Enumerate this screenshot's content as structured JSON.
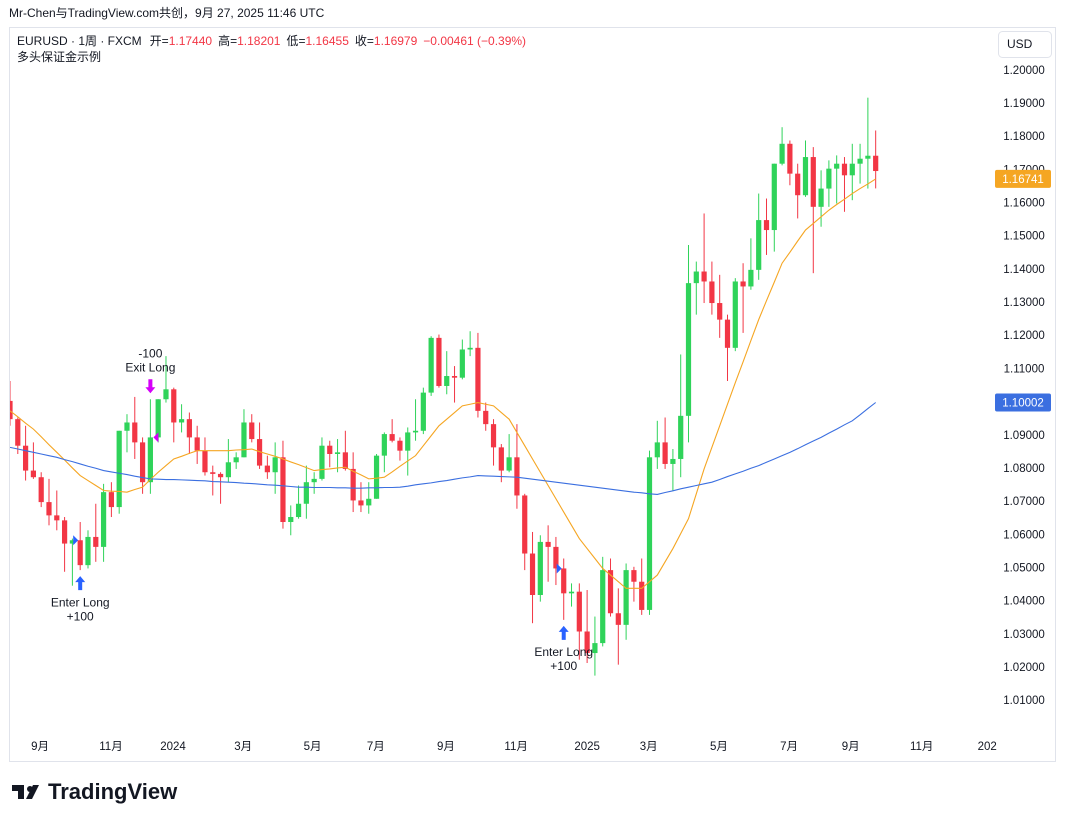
{
  "caption": "Mr-Chen与TradingView.com共创，9月 27, 2025 11:46 UTC",
  "branding": "TradingView",
  "chart_data": {
    "type": "candlestick",
    "legend": {
      "symbol": "EURUSD · 1周 · FXCM",
      "open_label": "开=",
      "open": "1.17440",
      "high_label": "高=",
      "high": "1.18201",
      "low_label": "低=",
      "low": "1.16455",
      "close_label": "收=",
      "close": "1.16979",
      "change": "−0.00461 (−0.39%)",
      "strategy": "多头保证金示例"
    },
    "currency": "USD",
    "up_color": "#2fd35a",
    "down_color": "#f23645",
    "grid": false,
    "xlim": [
      0,
      126.3
    ],
    "xticks": [
      {
        "value": 3.85,
        "label": "9月"
      },
      {
        "value": 12.95,
        "label": "11月"
      },
      {
        "value": 20.9,
        "label": "2024"
      },
      {
        "value": 29.9,
        "label": "3月"
      },
      {
        "value": 38.8,
        "label": "5月"
      },
      {
        "value": 46.9,
        "label": "7月"
      },
      {
        "value": 55.9,
        "label": "9月"
      },
      {
        "value": 64.9,
        "label": "11月"
      },
      {
        "value": 74.0,
        "label": "2025"
      },
      {
        "value": 81.9,
        "label": "3月"
      },
      {
        "value": 90.9,
        "label": "5月"
      },
      {
        "value": 99.9,
        "label": "7月"
      },
      {
        "value": 107.8,
        "label": "9月"
      },
      {
        "value": 116.9,
        "label": "11月"
      },
      {
        "value": 125.3,
        "label": "202"
      }
    ],
    "ylim": [
      0.9998,
      1.2129
    ],
    "yticks": [
      {
        "value": 1.01,
        "label": "1.01000"
      },
      {
        "value": 1.02,
        "label": "1.02000"
      },
      {
        "value": 1.03,
        "label": "1.03000"
      },
      {
        "value": 1.04,
        "label": "1.04000"
      },
      {
        "value": 1.05,
        "label": "1.05000"
      },
      {
        "value": 1.06,
        "label": "1.06000"
      },
      {
        "value": 1.07,
        "label": "1.07000"
      },
      {
        "value": 1.08,
        "label": "1.08000"
      },
      {
        "value": 1.09,
        "label": "1.09000"
      },
      {
        "value": 1.1,
        "label": "1.10000"
      },
      {
        "value": 1.11,
        "label": "1.11000"
      },
      {
        "value": 1.12,
        "label": "1.12000"
      },
      {
        "value": 1.13,
        "label": "1.13000"
      },
      {
        "value": 1.14,
        "label": "1.14000"
      },
      {
        "value": 1.15,
        "label": "1.15000"
      },
      {
        "value": 1.16,
        "label": "1.16000"
      },
      {
        "value": 1.17,
        "label": "1.17000"
      },
      {
        "value": 1.18,
        "label": "1.18000"
      },
      {
        "value": 1.19,
        "label": "1.19000"
      },
      {
        "value": 1.2,
        "label": "1.20000"
      }
    ],
    "x": [
      0,
      1,
      2,
      3,
      4,
      5,
      6,
      7,
      8,
      9,
      10,
      11,
      12,
      13,
      14,
      15,
      16,
      17,
      18,
      19,
      20,
      21,
      22,
      23,
      24,
      25,
      26,
      27,
      28,
      29,
      30,
      31,
      32,
      33,
      34,
      35,
      36,
      37,
      38,
      39,
      40,
      41,
      42,
      43,
      44,
      45,
      46,
      47,
      48,
      49,
      50,
      51,
      52,
      53,
      54,
      55,
      56,
      57,
      58,
      59,
      60,
      61,
      62,
      63,
      64,
      65,
      66,
      67,
      68,
      69,
      70,
      71,
      72,
      73,
      74,
      75,
      76,
      77,
      78,
      79,
      80,
      81,
      82,
      83,
      84,
      85,
      86,
      87,
      88,
      89,
      90,
      91,
      92,
      93,
      94,
      95,
      96,
      97,
      98,
      99,
      100,
      101,
      102,
      103,
      104,
      105,
      106,
      107,
      108,
      109,
      110,
      111
    ],
    "open": [
      1.1005,
      1.095,
      1.087,
      1.0795,
      1.0775,
      1.07,
      1.066,
      1.0645,
      1.0575,
      1.0585,
      1.051,
      1.0595,
      1.0565,
      1.073,
      1.0685,
      1.0915,
      1.094,
      1.088,
      1.076,
      1.0895,
      1.101,
      1.104,
      1.094,
      1.095,
      1.0895,
      1.0855,
      1.079,
      1.0785,
      1.0775,
      1.082,
      1.0835,
      1.094,
      1.089,
      1.081,
      1.079,
      1.0835,
      1.064,
      1.0655,
      1.0695,
      1.076,
      1.077,
      1.087,
      1.0845,
      1.085,
      1.08,
      1.0705,
      1.069,
      1.071,
      1.084,
      1.0905,
      1.0885,
      1.0855,
      1.091,
      1.0915,
      1.103,
      1.1195,
      1.105,
      1.108,
      1.1075,
      1.116,
      1.1165,
      1.0975,
      1.0935,
      1.0865,
      1.0795,
      1.0835,
      1.072,
      1.0545,
      1.042,
      1.058,
      1.0565,
      1.05,
      1.0425,
      1.043,
      1.031,
      1.0245,
      1.0275,
      1.0495,
      1.0365,
      1.033,
      1.0495,
      1.046,
      1.0375,
      1.0835,
      1.088,
      1.0815,
      1.083,
      1.096,
      1.136,
      1.1395,
      1.1365,
      1.13,
      1.125,
      1.1165,
      1.1365,
      1.135,
      1.14,
      1.155,
      1.152,
      1.172,
      1.178,
      1.169,
      1.1625,
      1.174,
      1.159,
      1.1645,
      1.1705,
      1.172,
      1.1685,
      1.172,
      1.1735,
      1.1744
    ],
    "high": [
      1.1065,
      1.0955,
      1.093,
      1.088,
      1.079,
      1.077,
      1.0735,
      1.0655,
      1.059,
      1.064,
      1.0615,
      1.0695,
      1.0755,
      1.076,
      1.0915,
      1.0965,
      1.1017,
      1.0895,
      1.101,
      1.101,
      1.114,
      1.1045,
      1.0995,
      1.097,
      1.093,
      1.0895,
      1.081,
      1.079,
      1.089,
      1.085,
      1.098,
      1.0965,
      1.094,
      1.084,
      1.088,
      1.0885,
      1.069,
      1.075,
      1.081,
      1.079,
      1.0895,
      1.0885,
      1.089,
      1.0915,
      1.085,
      1.076,
      1.076,
      1.0845,
      1.091,
      1.095,
      1.0895,
      1.0925,
      1.101,
      1.1045,
      1.12,
      1.1205,
      1.1155,
      1.111,
      1.119,
      1.1215,
      1.121,
      1.1,
      1.095,
      1.0875,
      1.0905,
      1.0935,
      1.0725,
      1.061,
      1.06,
      1.063,
      1.0595,
      1.053,
      1.0455,
      1.0455,
      1.0435,
      1.0355,
      1.0535,
      1.053,
      1.044,
      1.0515,
      1.0505,
      1.053,
      1.0855,
      1.0945,
      1.0955,
      1.086,
      1.1145,
      1.1475,
      1.1425,
      1.157,
      1.1425,
      1.1385,
      1.1265,
      1.1375,
      1.142,
      1.1495,
      1.163,
      1.1615,
      1.172,
      1.183,
      1.179,
      1.172,
      1.179,
      1.177,
      1.17,
      1.173,
      1.1745,
      1.174,
      1.178,
      1.178,
      1.1919,
      1.18201
    ],
    "low": [
      1.093,
      1.0845,
      1.0765,
      1.077,
      1.0685,
      1.063,
      1.0615,
      1.049,
      1.0448,
      1.0495,
      1.05,
      1.052,
      1.052,
      1.0655,
      1.0665,
      1.085,
      1.083,
      1.0725,
      1.0725,
      1.088,
      1.1,
      1.088,
      1.091,
      1.0845,
      1.0815,
      1.078,
      1.072,
      1.0695,
      1.076,
      1.08,
      1.0835,
      1.088,
      1.08,
      1.077,
      1.0725,
      1.062,
      1.06,
      1.065,
      1.065,
      1.0725,
      1.0765,
      1.0805,
      1.079,
      1.0795,
      1.067,
      1.067,
      1.0665,
      1.071,
      1.079,
      1.088,
      1.0825,
      1.078,
      1.0885,
      1.0905,
      1.102,
      1.1045,
      1.1025,
      1.1,
      1.107,
      1.114,
      1.0955,
      1.0915,
      1.081,
      1.076,
      1.079,
      1.068,
      1.0495,
      1.0335,
      1.04,
      1.046,
      1.045,
      1.0345,
      1.0385,
      1.0225,
      1.0215,
      1.0177,
      1.0265,
      1.0355,
      1.021,
      1.0285,
      1.04,
      1.036,
      1.036,
      1.08,
      1.08,
      1.0735,
      1.0775,
      1.088,
      1.1265,
      1.13,
      1.1265,
      1.1195,
      1.1065,
      1.1155,
      1.121,
      1.134,
      1.137,
      1.1445,
      1.1455,
      1.1715,
      1.1655,
      1.1555,
      1.162,
      1.139,
      1.153,
      1.159,
      1.16,
      1.1575,
      1.161,
      1.166,
      1.1645,
      1.16455
    ],
    "close": [
      1.095,
      1.087,
      1.0795,
      1.0775,
      1.07,
      1.066,
      1.0645,
      1.0575,
      1.0585,
      1.051,
      1.0595,
      1.0565,
      1.073,
      1.0685,
      1.0915,
      1.094,
      1.088,
      1.076,
      1.0895,
      1.101,
      1.104,
      1.094,
      1.095,
      1.0895,
      1.0855,
      1.079,
      1.0785,
      1.0775,
      1.082,
      1.0835,
      1.094,
      1.089,
      1.081,
      1.079,
      1.0835,
      1.064,
      1.0655,
      1.0695,
      1.076,
      1.077,
      1.087,
      1.0845,
      1.085,
      1.08,
      1.0705,
      1.069,
      1.071,
      1.084,
      1.0905,
      1.0885,
      1.0855,
      1.091,
      1.0915,
      1.103,
      1.1195,
      1.105,
      1.108,
      1.1075,
      1.116,
      1.1165,
      1.0975,
      1.0935,
      1.0865,
      1.0795,
      1.0835,
      1.072,
      1.0545,
      1.042,
      1.058,
      1.0565,
      1.05,
      1.0425,
      1.043,
      1.031,
      1.0245,
      1.0275,
      1.0495,
      1.0365,
      1.033,
      1.0495,
      1.046,
      1.0375,
      1.0835,
      1.088,
      1.0815,
      1.083,
      1.096,
      1.136,
      1.1395,
      1.1365,
      1.13,
      1.125,
      1.1165,
      1.1365,
      1.135,
      1.14,
      1.155,
      1.152,
      1.172,
      1.178,
      1.169,
      1.1625,
      1.174,
      1.159,
      1.1645,
      1.1705,
      1.172,
      1.1685,
      1.172,
      1.1735,
      1.1744,
      1.16979
    ],
    "overlays": [
      {
        "color": "#f5a623",
        "values": [
          1.0975,
          1.0957,
          1.0938,
          1.092,
          1.0897,
          1.0873,
          1.085,
          1.0827,
          1.0803,
          1.078,
          1.0765,
          1.075,
          1.0735,
          1.0733,
          1.0732,
          1.073,
          1.0738,
          1.0745,
          1.0768,
          1.079,
          1.081,
          1.083,
          1.0838,
          1.0847,
          1.0855,
          1.0855,
          1.0855,
          1.0855,
          1.0855,
          1.0857,
          1.0858,
          1.086,
          1.0852,
          1.0845,
          1.0838,
          1.083,
          1.0821,
          1.0813,
          1.0804,
          1.0795,
          1.0798,
          1.08,
          1.0803,
          1.0805,
          1.0793,
          1.0782,
          1.077,
          1.0772,
          1.0775,
          1.0791,
          1.0808,
          1.0824,
          1.084,
          1.087,
          1.09,
          1.093,
          1.095,
          1.097,
          1.099,
          1.0995,
          1.1,
          1.0995,
          1.099,
          1.097,
          1.095,
          1.091,
          1.087,
          1.083,
          1.079,
          1.075,
          1.071,
          1.067,
          1.063,
          1.059,
          1.056,
          1.053,
          1.05,
          1.048,
          1.046,
          1.044,
          1.044,
          1.044,
          1.046,
          1.048,
          1.052,
          1.056,
          1.0605,
          1.065,
          1.0725,
          1.08,
          1.0865,
          1.093,
          1.0995,
          1.106,
          1.1123,
          1.1187,
          1.125,
          1.1307,
          1.1363,
          1.142,
          1.1453,
          1.1487,
          1.152,
          1.154,
          1.156,
          1.158,
          1.1597,
          1.1613,
          1.163,
          1.1645,
          1.1659,
          1.16741
        ]
      },
      {
        "color": "#3b6fe0",
        "values": [
          1.0865,
          1.086,
          1.0855,
          1.085,
          1.0845,
          1.084,
          1.0835,
          1.0828,
          1.0822,
          1.0815,
          1.0808,
          1.0802,
          1.0795,
          1.0791,
          1.0787,
          1.0783,
          1.0778,
          1.0774,
          1.077,
          1.0769,
          1.0768,
          1.0768,
          1.0767,
          1.0766,
          1.0765,
          1.0764,
          1.0762,
          1.0761,
          1.076,
          1.0759,
          1.0757,
          1.0756,
          1.0754,
          1.0752,
          1.0751,
          1.0749,
          1.0747,
          1.0745,
          1.0745,
          1.0744,
          1.0744,
          1.0744,
          1.0743,
          1.0743,
          1.0742,
          1.0742,
          1.0743,
          1.0743,
          1.0744,
          1.0744,
          1.0745,
          1.0748,
          1.0752,
          1.0755,
          1.0758,
          1.0762,
          1.0765,
          1.0769,
          1.0773,
          1.0776,
          1.078,
          1.0779,
          1.0778,
          1.0777,
          1.0776,
          1.0775,
          1.0772,
          1.0769,
          1.0766,
          1.0763,
          1.076,
          1.0757,
          1.0754,
          1.0751,
          1.0748,
          1.0745,
          1.0742,
          1.0739,
          1.0736,
          1.0733,
          1.073,
          1.0728,
          1.0725,
          1.0723,
          1.0729,
          1.0734,
          1.074,
          1.0745,
          1.075,
          1.0755,
          1.076,
          1.0768,
          1.0777,
          1.0785,
          1.0793,
          1.0802,
          1.081,
          1.082,
          1.083,
          1.084,
          1.085,
          1.0861,
          1.0873,
          1.0884,
          1.0895,
          1.0908,
          1.092,
          1.0933,
          1.0945,
          1.0963,
          1.0982,
          1.10002
        ]
      }
    ],
    "signals": [
      {
        "x": 9,
        "direction": "up",
        "color": "#2962ff",
        "label": "Enter Long",
        "qty": "+100"
      },
      {
        "x": 18,
        "direction": "down",
        "color": "#d500f9",
        "label": "Exit Long",
        "qty": "-100"
      },
      {
        "x": 71,
        "direction": "up",
        "color": "#2962ff",
        "label": "Enter Long",
        "qty": "+100"
      }
    ]
  }
}
